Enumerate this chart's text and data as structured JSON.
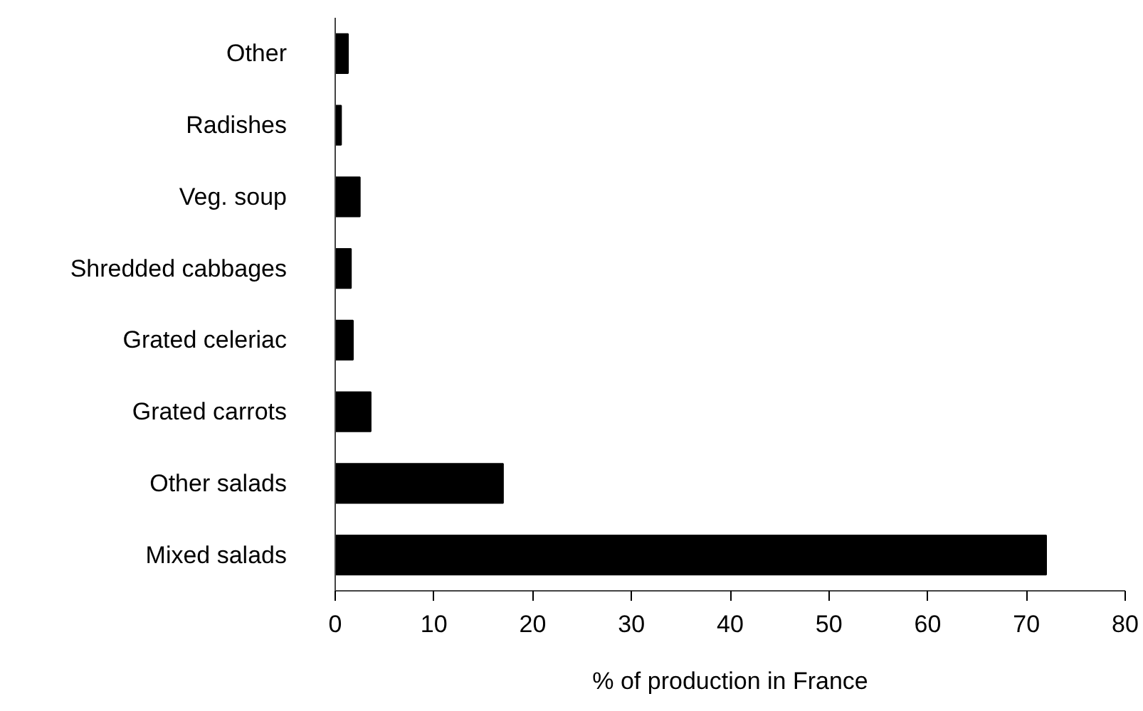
{
  "chart_data": {
    "type": "bar",
    "orientation": "horizontal",
    "xlabel": "% of production in France",
    "categories": [
      "Other",
      "Radishes",
      "Veg. soup",
      "Shredded cabbages",
      "Grated celeriac",
      "Grated carrots",
      "Other salads",
      "Mixed salads"
    ],
    "values": [
      1.3,
      0.6,
      2.5,
      1.6,
      1.8,
      3.6,
      17,
      72
    ],
    "color": "#000000",
    "xlim": [
      0,
      80
    ],
    "xticks": [
      0,
      10,
      20,
      30,
      40,
      50,
      60,
      70,
      80
    ]
  }
}
